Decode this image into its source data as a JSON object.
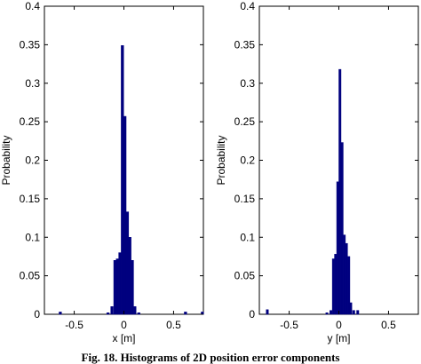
{
  "figure": {
    "caption": "Fig. 18. Histograms of 2D position error components"
  },
  "chart_data": [
    {
      "type": "bar",
      "xlabel": "x [m]",
      "ylabel": "Probability",
      "xlim": [
        -0.8,
        0.8
      ],
      "ylim": [
        0,
        0.4
      ],
      "xticks": [
        "-0.5",
        "0",
        "0.5"
      ],
      "yticks": [
        "0",
        "0.05",
        "0.1",
        "0.15",
        "0.2",
        "0.25",
        "0.3",
        "0.35",
        "0.4"
      ],
      "bar_width": 0.025,
      "bar_color": "#00007f",
      "x": [
        -0.64,
        -0.16,
        -0.12,
        -0.09,
        -0.065,
        -0.04,
        -0.015,
        0.01,
        0.035,
        0.06,
        0.085,
        0.11,
        0.15,
        0.62,
        0.79
      ],
      "values": [
        0.003,
        0.002,
        0.01,
        0.07,
        0.072,
        0.08,
        0.349,
        0.257,
        0.133,
        0.1,
        0.07,
        0.01,
        0.002,
        0.003,
        0.003
      ]
    },
    {
      "type": "bar",
      "xlabel": "y [m]",
      "ylabel": "Probability",
      "xlim": [
        -0.8,
        0.8
      ],
      "ylim": [
        0,
        0.4
      ],
      "xticks": [
        "-0.5",
        "0",
        "0.5"
      ],
      "yticks": [
        "0",
        "0.05",
        "0.1",
        "0.15",
        "0.2",
        "0.25",
        "0.3",
        "0.35",
        "0.4"
      ],
      "bar_width": 0.022,
      "bar_color": "#00007f",
      "x": [
        -0.72,
        -0.12,
        -0.08,
        -0.055,
        -0.033,
        -0.011,
        0.011,
        0.033,
        0.055,
        0.077,
        0.1,
        0.12,
        0.15,
        0.19
      ],
      "values": [
        0.006,
        0.002,
        0.005,
        0.072,
        0.078,
        0.172,
        0.318,
        0.223,
        0.103,
        0.092,
        0.075,
        0.015,
        0.005,
        0.005
      ]
    }
  ]
}
